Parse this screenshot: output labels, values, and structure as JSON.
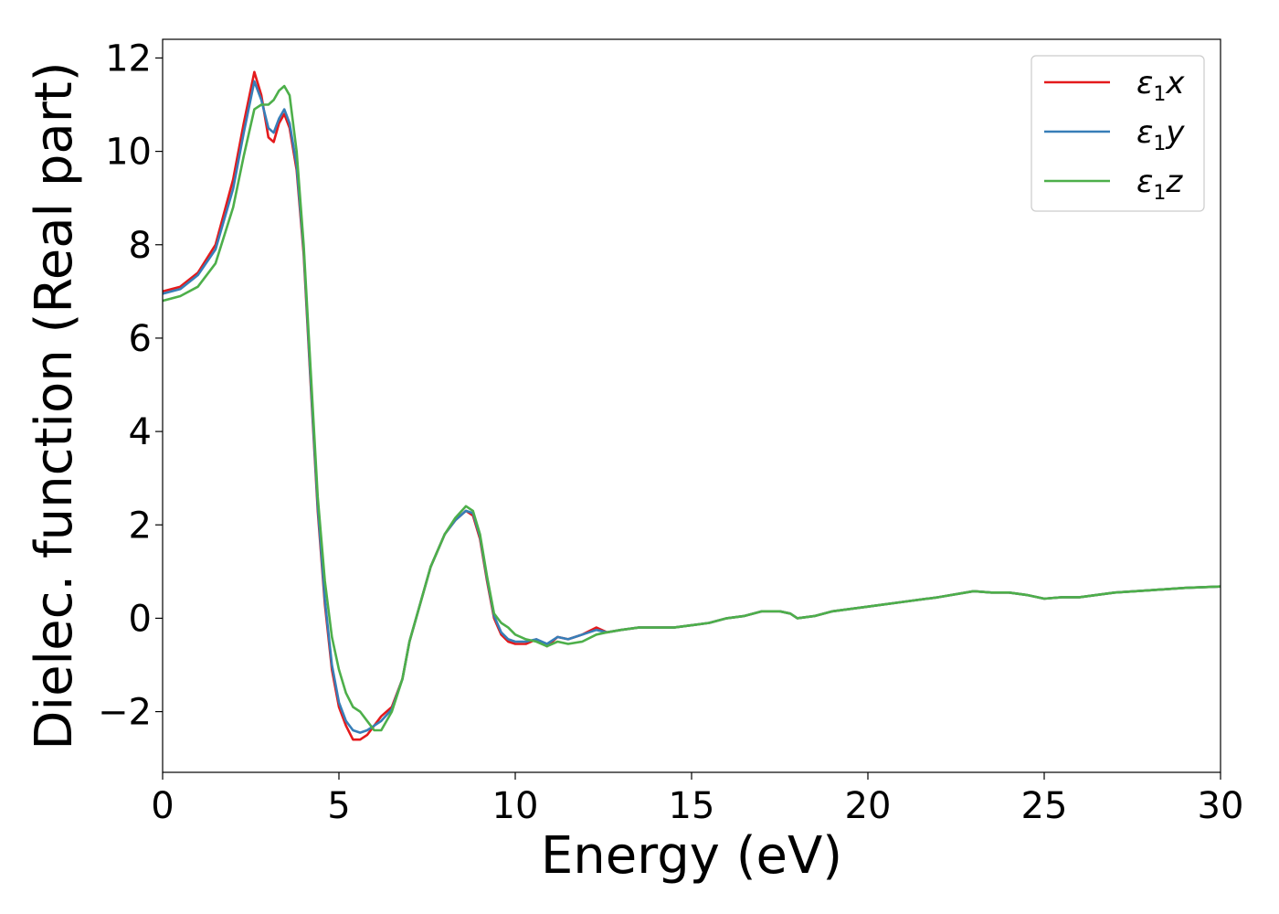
{
  "chart_data": {
    "type": "line",
    "title": "",
    "xlabel": "Energy (eV)",
    "ylabel": "Dielec. function (Real part)",
    "xlim": [
      0,
      30
    ],
    "ylim": [
      -3.3,
      12.4
    ],
    "xticks": [
      0,
      5,
      10,
      15,
      20,
      25,
      30
    ],
    "xtick_labels": [
      "0",
      "5",
      "10",
      "15",
      "20",
      "25",
      "30"
    ],
    "yticks": [
      -2,
      0,
      2,
      4,
      6,
      8,
      10,
      12
    ],
    "ytick_labels": [
      "−2",
      "0",
      "2",
      "4",
      "6",
      "8",
      "10",
      "12"
    ],
    "grid": false,
    "legend_position": "top-right",
    "series": [
      {
        "name": "ε1x",
        "symbol": "ε",
        "sub": "1",
        "axis": "x",
        "color": "#e41a1c",
        "x": [
          0,
          0.5,
          1.0,
          1.5,
          2.0,
          2.3,
          2.6,
          2.8,
          3.0,
          3.15,
          3.3,
          3.45,
          3.6,
          3.8,
          4.0,
          4.2,
          4.4,
          4.6,
          4.8,
          5.0,
          5.2,
          5.4,
          5.6,
          5.8,
          6.0,
          6.2,
          6.5,
          6.8,
          7.0,
          7.3,
          7.6,
          8.0,
          8.3,
          8.6,
          8.8,
          9.0,
          9.2,
          9.4,
          9.6,
          9.8,
          10.0,
          10.3,
          10.6,
          10.9,
          11.2,
          11.5,
          11.9,
          12.3,
          12.6,
          13.0,
          13.5,
          14.0,
          14.5,
          15.0,
          15.5,
          16.0,
          16.5,
          17.0,
          17.5,
          17.8,
          18.0,
          18.5,
          19.0,
          20.0,
          21.0,
          22.0,
          23.0,
          23.5,
          24.0,
          24.5,
          25.0,
          25.5,
          26.0,
          27.0,
          28.0,
          29.0,
          30.0
        ],
        "y": [
          7.0,
          7.1,
          7.4,
          8.0,
          9.4,
          10.6,
          11.7,
          11.2,
          10.3,
          10.2,
          10.6,
          10.8,
          10.5,
          9.6,
          7.8,
          5.0,
          2.3,
          0.3,
          -1.1,
          -1.9,
          -2.3,
          -2.6,
          -2.6,
          -2.5,
          -2.3,
          -2.1,
          -1.9,
          -1.3,
          -0.5,
          0.3,
          1.1,
          1.8,
          2.1,
          2.3,
          2.2,
          1.7,
          0.8,
          0.0,
          -0.35,
          -0.5,
          -0.55,
          -0.55,
          -0.45,
          -0.6,
          -0.4,
          -0.45,
          -0.35,
          -0.2,
          -0.3,
          -0.25,
          -0.2,
          -0.2,
          -0.2,
          -0.15,
          -0.1,
          0.0,
          0.05,
          0.15,
          0.15,
          0.1,
          0.0,
          0.05,
          0.15,
          0.25,
          0.35,
          0.45,
          0.58,
          0.55,
          0.55,
          0.5,
          0.42,
          0.45,
          0.45,
          0.55,
          0.6,
          0.65,
          0.68
        ]
      },
      {
        "name": "ε1y",
        "symbol": "ε",
        "sub": "1",
        "axis": "y",
        "color": "#377eb8",
        "x": [
          0,
          0.5,
          1.0,
          1.5,
          2.0,
          2.3,
          2.6,
          2.8,
          3.0,
          3.15,
          3.3,
          3.45,
          3.6,
          3.8,
          4.0,
          4.2,
          4.4,
          4.6,
          4.8,
          5.0,
          5.2,
          5.4,
          5.6,
          5.8,
          6.0,
          6.2,
          6.5,
          6.8,
          7.0,
          7.3,
          7.6,
          8.0,
          8.3,
          8.6,
          8.8,
          9.0,
          9.2,
          9.4,
          9.6,
          9.8,
          10.0,
          10.3,
          10.6,
          10.9,
          11.2,
          11.5,
          11.9,
          12.3,
          12.6,
          13.0,
          13.5,
          14.0,
          14.5,
          15.0,
          15.5,
          16.0,
          16.5,
          17.0,
          17.5,
          17.8,
          18.0,
          18.5,
          19.0,
          20.0,
          21.0,
          22.0,
          23.0,
          23.5,
          24.0,
          24.5,
          25.0,
          25.5,
          26.0,
          27.0,
          28.0,
          29.0,
          30.0
        ],
        "y": [
          6.95,
          7.05,
          7.35,
          7.9,
          9.2,
          10.4,
          11.5,
          11.1,
          10.5,
          10.4,
          10.7,
          10.9,
          10.6,
          9.7,
          7.9,
          5.1,
          2.4,
          0.4,
          -1.0,
          -1.8,
          -2.2,
          -2.4,
          -2.45,
          -2.4,
          -2.3,
          -2.2,
          -1.95,
          -1.3,
          -0.5,
          0.3,
          1.1,
          1.8,
          2.1,
          2.3,
          2.25,
          1.75,
          0.85,
          0.05,
          -0.3,
          -0.45,
          -0.5,
          -0.5,
          -0.45,
          -0.55,
          -0.4,
          -0.45,
          -0.35,
          -0.25,
          -0.3,
          -0.25,
          -0.2,
          -0.2,
          -0.2,
          -0.15,
          -0.1,
          0.0,
          0.05,
          0.15,
          0.15,
          0.1,
          0.0,
          0.05,
          0.15,
          0.25,
          0.35,
          0.45,
          0.58,
          0.55,
          0.55,
          0.5,
          0.42,
          0.45,
          0.45,
          0.55,
          0.6,
          0.65,
          0.68
        ]
      },
      {
        "name": "ε1z",
        "symbol": "ε",
        "sub": "1",
        "axis": "z",
        "color": "#4daf4a",
        "x": [
          0,
          0.5,
          1.0,
          1.5,
          2.0,
          2.3,
          2.6,
          2.8,
          3.0,
          3.15,
          3.3,
          3.45,
          3.6,
          3.8,
          4.0,
          4.2,
          4.4,
          4.6,
          4.8,
          5.0,
          5.2,
          5.4,
          5.6,
          5.8,
          6.0,
          6.2,
          6.5,
          6.8,
          7.0,
          7.3,
          7.6,
          8.0,
          8.3,
          8.6,
          8.8,
          9.0,
          9.2,
          9.4,
          9.6,
          9.8,
          10.0,
          10.3,
          10.6,
          10.9,
          11.2,
          11.5,
          11.9,
          12.3,
          12.6,
          13.0,
          13.5,
          14.0,
          14.5,
          15.0,
          15.5,
          16.0,
          16.5,
          17.0,
          17.5,
          17.8,
          18.0,
          18.5,
          19.0,
          20.0,
          21.0,
          22.0,
          23.0,
          23.5,
          24.0,
          24.5,
          25.0,
          25.5,
          26.0,
          27.0,
          28.0,
          29.0,
          30.0
        ],
        "y": [
          6.8,
          6.9,
          7.1,
          7.6,
          8.8,
          9.9,
          10.9,
          11.0,
          11.0,
          11.1,
          11.3,
          11.4,
          11.2,
          10.0,
          8.0,
          5.3,
          2.6,
          0.8,
          -0.4,
          -1.1,
          -1.6,
          -1.9,
          -2.0,
          -2.2,
          -2.4,
          -2.4,
          -2.0,
          -1.3,
          -0.5,
          0.3,
          1.1,
          1.8,
          2.15,
          2.4,
          2.3,
          1.8,
          0.9,
          0.1,
          -0.1,
          -0.2,
          -0.35,
          -0.45,
          -0.5,
          -0.6,
          -0.5,
          -0.55,
          -0.5,
          -0.35,
          -0.3,
          -0.25,
          -0.2,
          -0.2,
          -0.2,
          -0.15,
          -0.1,
          0.0,
          0.05,
          0.15,
          0.15,
          0.1,
          0.0,
          0.05,
          0.15,
          0.25,
          0.35,
          0.45,
          0.58,
          0.55,
          0.55,
          0.5,
          0.42,
          0.45,
          0.45,
          0.55,
          0.6,
          0.65,
          0.68
        ]
      }
    ]
  }
}
